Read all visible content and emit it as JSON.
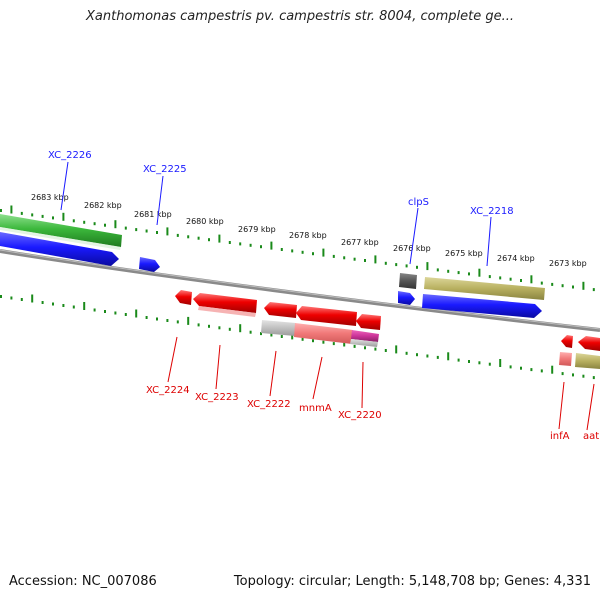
{
  "title": "Xanthomonas campestris pv. campestris str. 8004, complete ge...",
  "footer": {
    "accession": "Accession: NC_007086",
    "summary": "Topology: circular; Length: 5,148,708 bp; Genes: 4,331"
  },
  "kbp_labels": [
    "2683 kbp",
    "2682 kbp",
    "2681 kbp",
    "2680 kbp",
    "2679 kbp",
    "2678 kbp",
    "2677 kbp",
    "2676 kbp",
    "2675 kbp",
    "2674 kbp",
    "2673 kbp"
  ],
  "forward_labels": [
    "XC_2226",
    "XC_2225",
    "clpS",
    "XC_2218"
  ],
  "reverse_labels": [
    "XC_2224",
    "XC_2223",
    "XC_2222",
    "mnmA",
    "XC_2220",
    "infA",
    "aat"
  ],
  "colors": {
    "forward_label": "#1a1aff",
    "reverse_label": "#dd0000",
    "gene_blue": "#1a1aff",
    "gene_green": "#3cb83c",
    "gene_red": "#ee0000",
    "gene_olive": "#b8b060",
    "gene_pink": "#f07878",
    "gene_gray": "#c0c0c0",
    "gene_darkgray": "#555555",
    "gene_magenta": "#cc3399",
    "tick_green": "#1a8a1a",
    "backbone": "#777777"
  }
}
